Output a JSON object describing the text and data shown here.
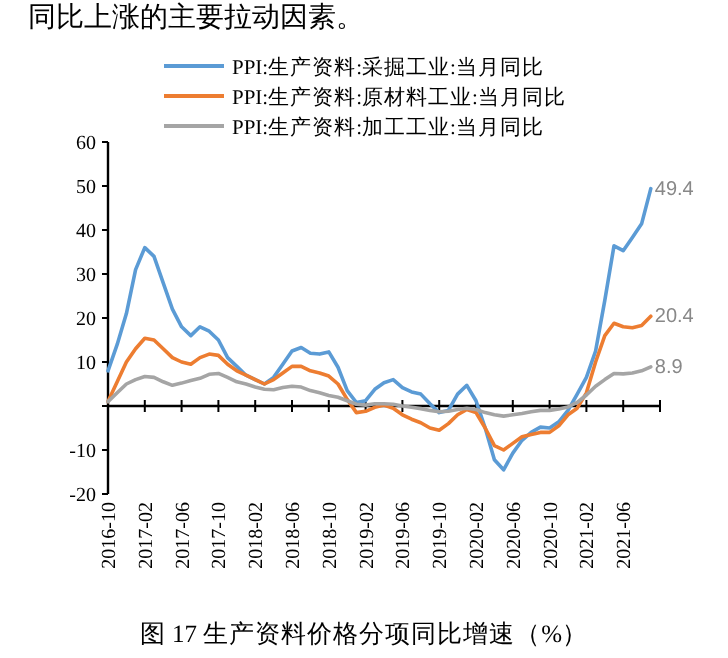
{
  "chart_data": {
    "type": "line",
    "title": "图 17  生产资料价格分项同比增速（%）",
    "annotations": [
      "同比上涨的主要拉动因素。"
    ],
    "categories": [
      "2016-10",
      null,
      null,
      null,
      "2017-02",
      null,
      null,
      null,
      "2017-06",
      null,
      null,
      null,
      "2017-10",
      null,
      null,
      null,
      "2018-02",
      null,
      null,
      null,
      "2018-06",
      null,
      null,
      null,
      "2018-10",
      null,
      null,
      null,
      "2019-02",
      null,
      null,
      null,
      "2019-06",
      null,
      null,
      null,
      "2019-10",
      null,
      null,
      null,
      "2020-02",
      null,
      null,
      null,
      "2020-06",
      null,
      null,
      null,
      "2020-10",
      null,
      null,
      null,
      "2021-02",
      null,
      null,
      null,
      "2021-06",
      null,
      null,
      null
    ],
    "ylim": [
      -20,
      60
    ],
    "yticks": [
      -20,
      -10,
      {
        "value": 0,
        "label": null
      },
      10,
      20,
      30,
      40,
      50,
      60
    ],
    "legend": "top",
    "marker": "none",
    "line_style": "solid",
    "series": [
      {
        "name": "PPI:生产资料:采掘工业:当月同比",
        "color": "#5b9bd5",
        "values": [
          8,
          14,
          21,
          31,
          36,
          34,
          28,
          22,
          18,
          16,
          18,
          17,
          15,
          11,
          9,
          7,
          6,
          5,
          6.5,
          9.5,
          12.5,
          13.3,
          12,
          11.8,
          12.3,
          8.8,
          3.5,
          0.8,
          1.2,
          3.8,
          5.3,
          6,
          4.2,
          3.2,
          2.7,
          0.5,
          -1.5,
          -1,
          2.7,
          4.7,
          1.2,
          -5,
          -12.2,
          -14.5,
          -10.7,
          -7.8,
          -6,
          -4.8,
          -5,
          -3.6,
          -1,
          2.7,
          6.5,
          12.5,
          24,
          36.4,
          35.3,
          38.3,
          41.4,
          49.4
        ],
        "value_labels": [
          null,
          null,
          null,
          null,
          null,
          null,
          null,
          null,
          null,
          null,
          null,
          null,
          null,
          null,
          null,
          null,
          null,
          null,
          null,
          null,
          null,
          null,
          null,
          null,
          null,
          null,
          null,
          null,
          null,
          null,
          null,
          null,
          null,
          null,
          null,
          null,
          null,
          null,
          null,
          null,
          null,
          null,
          null,
          null,
          null,
          null,
          null,
          null,
          null,
          null,
          null,
          null,
          null,
          null,
          null,
          null,
          null,
          null,
          null,
          "49.4"
        ]
      },
      {
        "name": "PPI:生产资料:原材料工业:当月同比",
        "color": "#ed7d31",
        "values": [
          1,
          5.5,
          10,
          13,
          15.4,
          15,
          13,
          11,
          10,
          9.5,
          11,
          11.8,
          11.5,
          9.5,
          8,
          7,
          6,
          5,
          6,
          7.5,
          9,
          9,
          8,
          7.5,
          6.8,
          5,
          1.5,
          -1.5,
          -1.2,
          -0.3,
          0.2,
          -0.5,
          -2,
          -3,
          -3.8,
          -5,
          -5.5,
          -4,
          -2,
          -0.8,
          -1.5,
          -5,
          -9,
          -10,
          -8.5,
          -7,
          -6.5,
          -6,
          -6,
          -4.5,
          -2,
          -0.5,
          3,
          10,
          16,
          18.8,
          18,
          17.8,
          18.3,
          20.4
        ],
        "value_labels": [
          null,
          null,
          null,
          null,
          null,
          null,
          null,
          null,
          null,
          null,
          null,
          null,
          null,
          null,
          null,
          null,
          null,
          null,
          null,
          null,
          null,
          null,
          null,
          null,
          null,
          null,
          null,
          null,
          null,
          null,
          null,
          null,
          null,
          null,
          null,
          null,
          null,
          null,
          null,
          null,
          null,
          null,
          null,
          null,
          null,
          null,
          null,
          null,
          null,
          null,
          null,
          null,
          null,
          null,
          null,
          null,
          null,
          null,
          null,
          "20.4"
        ]
      },
      {
        "name": "PPI:生产资料:加工工业:当月同比",
        "color": "#a5a5a5",
        "values": [
          1,
          3,
          5,
          6,
          6.7,
          6.5,
          5.5,
          4.7,
          5.2,
          5.8,
          6.3,
          7.2,
          7.4,
          6.5,
          5.5,
          5,
          4.3,
          3.8,
          3.7,
          4.2,
          4.5,
          4.3,
          3.5,
          3,
          2.4,
          2,
          1.2,
          0.4,
          0.2,
          0.5,
          0.5,
          0.4,
          0,
          -0.3,
          -0.6,
          -1,
          -1.3,
          -1.2,
          -0.8,
          -0.5,
          -0.8,
          -1.5,
          -2,
          -2.3,
          -2,
          -1.7,
          -1.3,
          -1,
          -1,
          -0.7,
          -0.2,
          0.8,
          2.5,
          4.5,
          6,
          7.4,
          7.3,
          7.5,
          8,
          8.9
        ],
        "value_labels": [
          null,
          null,
          null,
          null,
          null,
          null,
          null,
          null,
          null,
          null,
          null,
          null,
          null,
          null,
          null,
          null,
          null,
          null,
          null,
          null,
          null,
          null,
          null,
          null,
          null,
          null,
          null,
          null,
          null,
          null,
          null,
          null,
          null,
          null,
          null,
          null,
          null,
          null,
          null,
          null,
          null,
          null,
          null,
          null,
          null,
          null,
          null,
          null,
          null,
          null,
          null,
          null,
          null,
          null,
          null,
          null,
          null,
          null,
          null,
          "8.9"
        ]
      }
    ]
  }
}
